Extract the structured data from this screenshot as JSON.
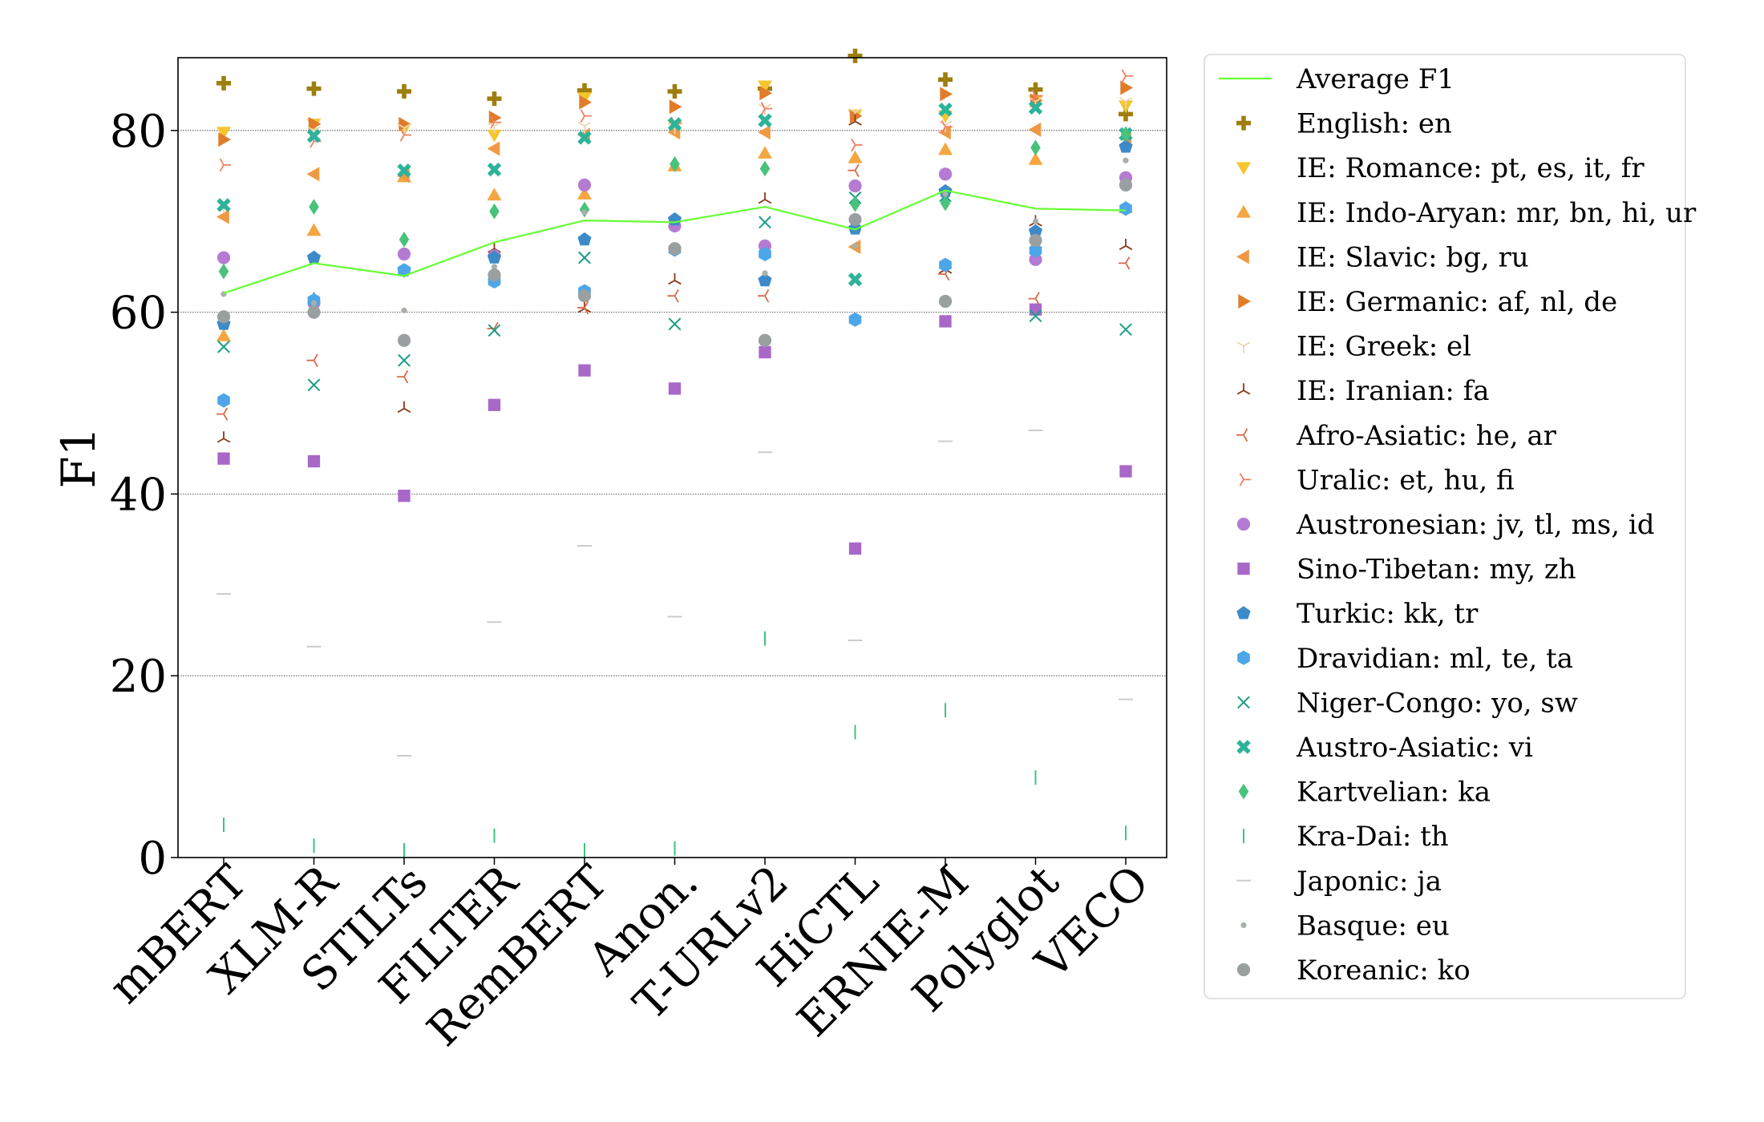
{
  "chart_data": {
    "type": "scatter",
    "title": "",
    "xlabel": "",
    "ylabel": "F1",
    "ylim": [
      0,
      88
    ],
    "yticks": [
      0,
      20,
      40,
      60,
      80
    ],
    "grid": "horizontal",
    "legend_position": "right",
    "categories": [
      "mBERT",
      "XLM-R",
      "STILTs",
      "FILTER",
      "RemBERT",
      "Anon.",
      "T-URLv2",
      "HiCTL",
      "ERNIE-M",
      "Polyglot",
      "VECO"
    ],
    "average": {
      "name": "Average F1",
      "color": "#66ff33",
      "values": [
        62.1,
        65.4,
        64.0,
        67.7,
        70.1,
        69.9,
        71.6,
        69.1,
        73.4,
        71.4,
        71.2
      ]
    },
    "series": [
      {
        "name": "English: en",
        "marker": "plus",
        "color": "#9e7e0e",
        "values": [
          85.2,
          84.6,
          84.3,
          83.5,
          84.4,
          84.3,
          84.6,
          88.2,
          85.6,
          84.5,
          81.8
        ]
      },
      {
        "name": "IE: Romance: pt, es, it, fr",
        "marker": "triangle-down",
        "color": "#f5c52f",
        "values": [
          79.8,
          80.7,
          80.2,
          79.5,
          83.6,
          80.5,
          84.9,
          81.7,
          81.6,
          83.3,
          82.7
        ]
      },
      {
        "name": "IE: Indo-Aryan: mr, bn, hi, ur",
        "marker": "triangle-up",
        "color": "#f4a640",
        "values": [
          57.4,
          69.0,
          74.9,
          72.9,
          73.0,
          76.1,
          77.5,
          77.0,
          77.9,
          76.8,
          71.5
        ]
      },
      {
        "name": "IE: Slavic: bg, ru",
        "marker": "triangle-left",
        "color": "#ee9a44",
        "values": [
          70.5,
          75.2,
          75.0,
          78.0,
          79.5,
          79.8,
          79.8,
          67.2,
          79.8,
          80.1,
          79.2
        ]
      },
      {
        "name": "IE: Germanic: af, nl, de",
        "marker": "triangle-right",
        "color": "#e07c2a",
        "values": [
          79.0,
          80.7,
          80.7,
          81.4,
          83.1,
          82.6,
          84.1,
          81.6,
          84.0,
          83.3,
          84.7
        ]
      },
      {
        "name": "IE: Greek: el",
        "marker": "tri-down",
        "color": "#e8d5b3",
        "values": [
          71.7,
          80.0,
          80.3,
          80.5,
          80.5,
          80.4,
          82.5,
          82.0,
          80.6,
          83.2,
          83.2
        ]
      },
      {
        "name": "IE: Iranian: fa",
        "marker": "tri-up",
        "color": "#8b3a1a",
        "values": [
          46.1,
          61.4,
          49.4,
          67.0,
          60.4,
          63.5,
          72.4,
          81.0,
          64.7,
          69.9,
          67.3
        ]
      },
      {
        "name": "Afro-Asiatic: he, ar",
        "marker": "tri-left",
        "color": "#d96a4a",
        "values": [
          48.8,
          54.7,
          52.9,
          58.2,
          60.5,
          61.8,
          61.8,
          75.6,
          64.2,
          61.5,
          65.4
        ]
      },
      {
        "name": "Uralic: et, hu, fi",
        "marker": "tri-right",
        "color": "#f08060",
        "values": [
          76.2,
          78.8,
          79.5,
          80.9,
          81.6,
          80.8,
          82.4,
          78.4,
          80.4,
          83.8,
          86.0
        ]
      },
      {
        "name": "Austronesian: jv, tl, ms, id",
        "marker": "circle",
        "color": "#b57bd3",
        "values": [
          66.0,
          61.0,
          66.4,
          66.2,
          74.0,
          69.5,
          67.3,
          73.9,
          75.2,
          65.8,
          74.8
        ]
      },
      {
        "name": "Sino-Tibetan: my, zh",
        "marker": "square",
        "color": "#a868c8",
        "values": [
          43.9,
          43.6,
          39.8,
          49.8,
          53.6,
          51.6,
          55.6,
          34.0,
          59.0,
          60.3,
          42.5
        ]
      },
      {
        "name": "Turkic: kk, tr",
        "marker": "pentagon",
        "color": "#3d8ac8",
        "values": [
          58.7,
          66.0,
          64.6,
          66.0,
          68.0,
          70.2,
          63.5,
          69.2,
          73.3,
          68.9,
          78.2
        ]
      },
      {
        "name": "Dravidian: ml, te, ta",
        "marker": "hexagon",
        "color": "#4ca6e8",
        "values": [
          50.3,
          61.3,
          64.6,
          63.4,
          62.3,
          66.9,
          66.4,
          59.2,
          65.2,
          66.8,
          71.4
        ]
      },
      {
        "name": "Niger-Congo: yo, sw",
        "marker": "x",
        "color": "#1b9e87",
        "values": [
          56.2,
          52.0,
          54.7,
          58.0,
          66.0,
          58.7,
          69.9,
          72.6,
          72.8,
          59.6,
          58.1
        ]
      },
      {
        "name": "Austro-Asiatic: vi",
        "marker": "x-filled",
        "color": "#2db39a",
        "values": [
          71.8,
          79.4,
          75.6,
          75.7,
          79.2,
          80.7,
          81.1,
          63.6,
          82.3,
          82.5,
          79.6
        ]
      },
      {
        "name": "Kartvelian: ka",
        "marker": "diamond",
        "color": "#49c27b",
        "values": [
          64.5,
          71.6,
          68.0,
          71.1,
          71.3,
          76.3,
          75.8,
          71.9,
          72.0,
          78.1,
          79.6
        ]
      },
      {
        "name": "Kra-Dai: th",
        "marker": "vline",
        "color": "#3cc580",
        "values": [
          3.6,
          1.3,
          0.8,
          2.4,
          0.8,
          1.0,
          24.1,
          13.8,
          16.2,
          8.8,
          2.7
        ]
      },
      {
        "name": "Japonic: ja",
        "marker": "hline",
        "color": "#cccccc",
        "values": [
          29.0,
          23.2,
          11.2,
          25.9,
          34.3,
          26.5,
          44.6,
          23.9,
          45.8,
          47.0,
          17.4
        ]
      },
      {
        "name": "Basque: eu",
        "marker": "point",
        "color": "#a8b0a8",
        "values": [
          62.0,
          61.0,
          60.2,
          65.0,
          71.0,
          67.0,
          64.3,
          67.3,
          73.0,
          70.0,
          76.7
        ]
      },
      {
        "name": "Koreanic: ko",
        "marker": "circle",
        "color": "#9aa0a0",
        "values": [
          59.5,
          60.0,
          56.9,
          64.1,
          61.8,
          67.0,
          56.9,
          70.2,
          61.2,
          67.9,
          74.0
        ]
      }
    ]
  }
}
